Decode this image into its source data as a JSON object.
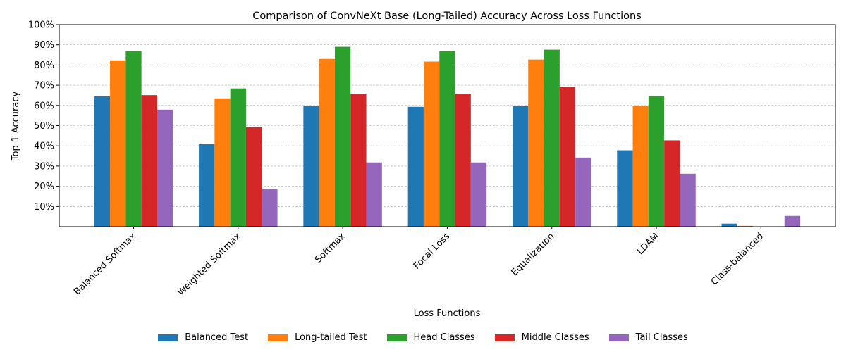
{
  "chart_data": {
    "type": "bar",
    "title": "Comparison of ConvNeXt Base (Long-Tailed) Accuracy Across Loss Functions",
    "xlabel": "Loss Functions",
    "ylabel": "Top-1 Accuracy",
    "ylim": [
      0,
      100
    ],
    "yticks": [
      "10%",
      "20%",
      "30%",
      "40%",
      "50%",
      "60%",
      "70%",
      "80%",
      "90%",
      "100%"
    ],
    "ytick_values": [
      10,
      20,
      30,
      40,
      50,
      60,
      70,
      80,
      90,
      100
    ],
    "grid": "horizontal-dashed",
    "legend_position": "bottom-center",
    "categories": [
      "Balanced Softmax",
      "Weighted Softmax",
      "Softmax",
      "Focal Loss",
      "Equalization",
      "LDAM",
      "Class-balanced"
    ],
    "series": [
      {
        "name": "Balanced Test",
        "color": "#1f77b4",
        "values": [
          64.5,
          40.8,
          59.7,
          59.3,
          59.7,
          37.8,
          1.5
        ]
      },
      {
        "name": "Long-tailed Test",
        "color": "#ff7f0e",
        "values": [
          82.3,
          63.5,
          83.0,
          81.7,
          82.7,
          59.8,
          0.4
        ]
      },
      {
        "name": "Head Classes",
        "color": "#2ca02c",
        "values": [
          86.9,
          68.4,
          89.0,
          86.9,
          87.6,
          64.6,
          0.0
        ]
      },
      {
        "name": "Middle Classes",
        "color": "#d62728",
        "values": [
          65.1,
          49.2,
          65.5,
          65.5,
          69.0,
          42.7,
          0.0
        ]
      },
      {
        "name": "Tail Classes",
        "color": "#9467bd",
        "values": [
          57.9,
          18.6,
          31.8,
          31.8,
          34.2,
          26.2,
          5.3
        ]
      }
    ]
  }
}
